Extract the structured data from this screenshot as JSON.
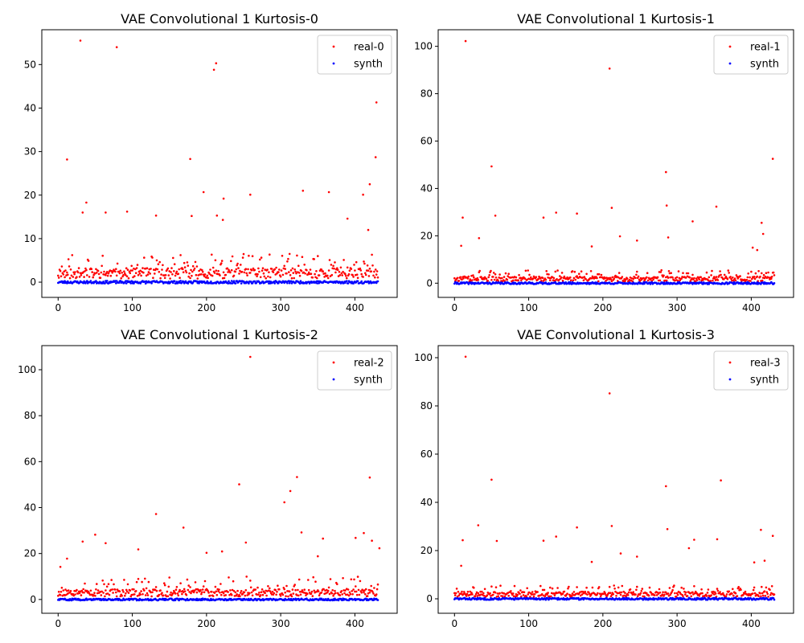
{
  "chart_data": [
    {
      "type": "scatter",
      "title": "VAE Convolutional 1 Kurtosis-0",
      "xlabel": "",
      "ylabel": "",
      "xlim": [
        -22,
        457
      ],
      "ylim": [
        -3.5,
        58
      ],
      "xticks": [
        0,
        100,
        200,
        300,
        400
      ],
      "yticks": [
        0,
        10,
        20,
        30,
        40,
        50
      ],
      "legend_loc": "top-right",
      "grid": false,
      "x_count": 432,
      "series": [
        {
          "name": "real-0",
          "color": "#ff0000",
          "baseline": {
            "seed": 11,
            "mean": 1.8,
            "spread": 2.4,
            "extra_mid": 4.5
          },
          "outliers": [
            [
              30,
              55.5
            ],
            [
              79,
              54.0
            ],
            [
              213,
              50.3
            ],
            [
              210,
              48.8
            ],
            [
              429,
              41.3
            ],
            [
              428,
              28.7
            ],
            [
              12,
              28.2
            ],
            [
              178,
              28.3
            ],
            [
              420,
              22.5
            ],
            [
              223,
              19.2
            ],
            [
              38,
              18.3
            ],
            [
              196,
              20.7
            ],
            [
              259,
              20.1
            ],
            [
              330,
              21.0
            ],
            [
              365,
              20.7
            ],
            [
              411,
              20.1
            ],
            [
              33,
              16.0
            ],
            [
              64,
              16.0
            ],
            [
              93,
              16.2
            ],
            [
              180,
              15.2
            ],
            [
              214,
              15.3
            ],
            [
              222,
              14.3
            ],
            [
              390,
              14.6
            ],
            [
              132,
              15.3
            ],
            [
              418,
              12.0
            ]
          ]
        },
        {
          "name": "synth",
          "color": "#0000ff",
          "baseline": {
            "seed": 23,
            "mean": 0.0,
            "spread": 0.3,
            "extra_mid": 0.0
          },
          "outliers": []
        }
      ]
    },
    {
      "type": "scatter",
      "title": "VAE Convolutional 1 Kurtosis-1",
      "xlabel": "",
      "ylabel": "",
      "xlim": [
        -22,
        457
      ],
      "ylim": [
        -6,
        107
      ],
      "xticks": [
        0,
        100,
        200,
        300,
        400
      ],
      "yticks": [
        0,
        20,
        40,
        60,
        80,
        100
      ],
      "legend_loc": "top-right",
      "grid": false,
      "x_count": 432,
      "series": [
        {
          "name": "real-1",
          "color": "#ff0000",
          "baseline": {
            "seed": 37,
            "mean": 1.6,
            "spread": 2.0,
            "extra_mid": 3.5
          },
          "outliers": [
            [
              15,
              102.2
            ],
            [
              209,
              90.6
            ],
            [
              429,
              52.5
            ],
            [
              50,
              49.3
            ],
            [
              285,
              46.9
            ],
            [
              212,
              31.8
            ],
            [
              286,
              32.8
            ],
            [
              353,
              32.3
            ],
            [
              137,
              29.8
            ],
            [
              165,
              29.4
            ],
            [
              55,
              28.5
            ],
            [
              120,
              27.7
            ],
            [
              11,
              27.7
            ],
            [
              321,
              26.1
            ],
            [
              414,
              25.5
            ],
            [
              416,
              20.8
            ],
            [
              223,
              19.8
            ],
            [
              33,
              19.0
            ],
            [
              288,
              19.3
            ],
            [
              246,
              18.0
            ],
            [
              9,
              15.8
            ],
            [
              185,
              15.5
            ],
            [
              402,
              15.0
            ],
            [
              408,
              14.0
            ]
          ]
        },
        {
          "name": "synth",
          "color": "#0000ff",
          "baseline": {
            "seed": 41,
            "mean": 0.0,
            "spread": 0.4,
            "extra_mid": 0.0
          },
          "outliers": []
        }
      ]
    },
    {
      "type": "scatter",
      "title": "VAE Convolutional 1 Kurtosis-2",
      "xlabel": "",
      "ylabel": "",
      "xlim": [
        -22,
        457
      ],
      "ylim": [
        -6,
        110.5
      ],
      "xticks": [
        0,
        100,
        200,
        300,
        400
      ],
      "yticks": [
        0,
        20,
        40,
        60,
        80,
        100
      ],
      "legend_loc": "top-right",
      "grid": false,
      "x_count": 432,
      "series": [
        {
          "name": "real-2",
          "color": "#ff0000",
          "baseline": {
            "seed": 53,
            "mean": 2.6,
            "spread": 3.2,
            "extra_mid": 8.0
          },
          "outliers": [
            [
              259,
              105.6
            ],
            [
              322,
              53.3
            ],
            [
              420,
              53.1
            ],
            [
              244,
              50.1
            ],
            [
              313,
              47.2
            ],
            [
              305,
              42.3
            ],
            [
              132,
              37.2
            ],
            [
              169,
              31.3
            ],
            [
              328,
              29.2
            ],
            [
              412,
              28.9
            ],
            [
              50,
              28.2
            ],
            [
              33,
              25.2
            ],
            [
              64,
              24.5
            ],
            [
              423,
              25.6
            ],
            [
              401,
              26.8
            ],
            [
              357,
              26.5
            ],
            [
              108,
              21.8
            ],
            [
              221,
              20.9
            ],
            [
              200,
              20.3
            ],
            [
              253,
              24.8
            ],
            [
              350,
              18.8
            ],
            [
              433,
              22.3
            ],
            [
              3,
              14.2
            ],
            [
              12,
              17.8
            ]
          ]
        },
        {
          "name": "synth",
          "color": "#0000ff",
          "baseline": {
            "seed": 59,
            "mean": 0.0,
            "spread": 0.4,
            "extra_mid": 0.0
          },
          "outliers": []
        }
      ]
    },
    {
      "type": "scatter",
      "title": "VAE Convolutional 1 Kurtosis-3",
      "xlabel": "",
      "ylabel": "",
      "xlim": [
        -22,
        457
      ],
      "ylim": [
        -6,
        105
      ],
      "xticks": [
        0,
        100,
        200,
        300,
        400
      ],
      "yticks": [
        0,
        20,
        40,
        60,
        80,
        100
      ],
      "legend_loc": "top-right",
      "grid": false,
      "x_count": 432,
      "series": [
        {
          "name": "real-3",
          "color": "#ff0000",
          "baseline": {
            "seed": 71,
            "mean": 1.7,
            "spread": 2.1,
            "extra_mid": 3.5
          },
          "outliers": [
            [
              15,
              100.4
            ],
            [
              209,
              85.2
            ],
            [
              50,
              49.4
            ],
            [
              359,
              49.1
            ],
            [
              285,
              46.7
            ],
            [
              32,
              30.5
            ],
            [
              212,
              30.2
            ],
            [
              165,
              29.6
            ],
            [
              287,
              28.9
            ],
            [
              413,
              28.6
            ],
            [
              429,
              26.1
            ],
            [
              137,
              25.8
            ],
            [
              11,
              24.3
            ],
            [
              354,
              24.7
            ],
            [
              323,
              24.5
            ],
            [
              57,
              24.0
            ],
            [
              224,
              18.8
            ],
            [
              316,
              21.0
            ],
            [
              404,
              15.1
            ],
            [
              246,
              17.5
            ],
            [
              185,
              15.3
            ],
            [
              9,
              13.7
            ],
            [
              120,
              24.1
            ],
            [
              418,
              15.8
            ]
          ]
        },
        {
          "name": "synth",
          "color": "#0000ff",
          "baseline": {
            "seed": 83,
            "mean": 0.0,
            "spread": 0.4,
            "extra_mid": 0.0
          },
          "outliers": []
        }
      ]
    }
  ]
}
